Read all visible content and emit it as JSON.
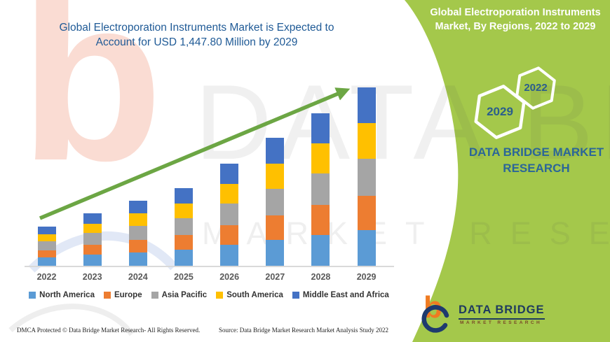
{
  "page": {
    "background": "#ffffff",
    "panel_green": "#A4C84B",
    "arrow_green": "#6CA644",
    "headline_blue": "#1F5A96"
  },
  "left": {
    "title": "Global Electroporation Instruments Market is Expected to Account for USD 1,447.80 Million by 2029"
  },
  "chart_data": {
    "type": "bar",
    "stacked": true,
    "unit": "USD Million",
    "title": "Global Electroporation Instruments Market is Expected to Account for USD 1,447.80 Million by 2029",
    "categories": [
      "2022",
      "2023",
      "2024",
      "2025",
      "2026",
      "2027",
      "2028",
      "2029"
    ],
    "series": [
      {
        "name": "North America",
        "color": "#5B9BD5",
        "values": [
          68,
          90,
          110,
          131,
          170,
          210,
          252,
          292
        ]
      },
      {
        "name": "Europe",
        "color": "#ED7D31",
        "values": [
          59,
          81,
          101,
          120,
          158,
          200,
          240,
          277
        ]
      },
      {
        "name": "Asia Pacific",
        "color": "#A5A5A5",
        "values": [
          72,
          93,
          115,
          136,
          176,
          214,
          256,
          298
        ]
      },
      {
        "name": "South America",
        "color": "#FFC000",
        "values": [
          55,
          76,
          97,
          119,
          160,
          206,
          244,
          290
        ]
      },
      {
        "name": "Middle East and Africa",
        "color": "#4472C4",
        "values": [
          63,
          85,
          105,
          125,
          166,
          208,
          247,
          290.8
        ]
      }
    ],
    "totals": [
      317,
      425,
      528,
      631,
      830,
      1038,
      1239,
      1447.8
    ],
    "highlight_value": "USD 1,447.80 Million by 2029",
    "ylim": [
      0,
      1500
    ],
    "y_axis_visible": false,
    "grid": false,
    "trend_arrow": true,
    "legend_position": "bottom"
  },
  "right_panel": {
    "title": "Global Electroporation Instruments Market, By Regions, 2022 to 2029",
    "hexagons": [
      {
        "label": "2029"
      },
      {
        "label": "2022"
      }
    ],
    "brand_text": "DATA BRIDGE MARKET RESEARCH"
  },
  "logo": {
    "name": "DATA BRIDGE",
    "subtitle": "MARKET RESEARCH"
  },
  "watermark": {
    "letter": "b",
    "line1": "DATA BRIDGE",
    "line2": "MARKET RESEARCH"
  },
  "footer": {
    "left": "DMCA Protected © Data Bridge Market Research- All Rights Reserved.",
    "source": "Source: Data Bridge Market Research Market Analysis Study 2022"
  }
}
